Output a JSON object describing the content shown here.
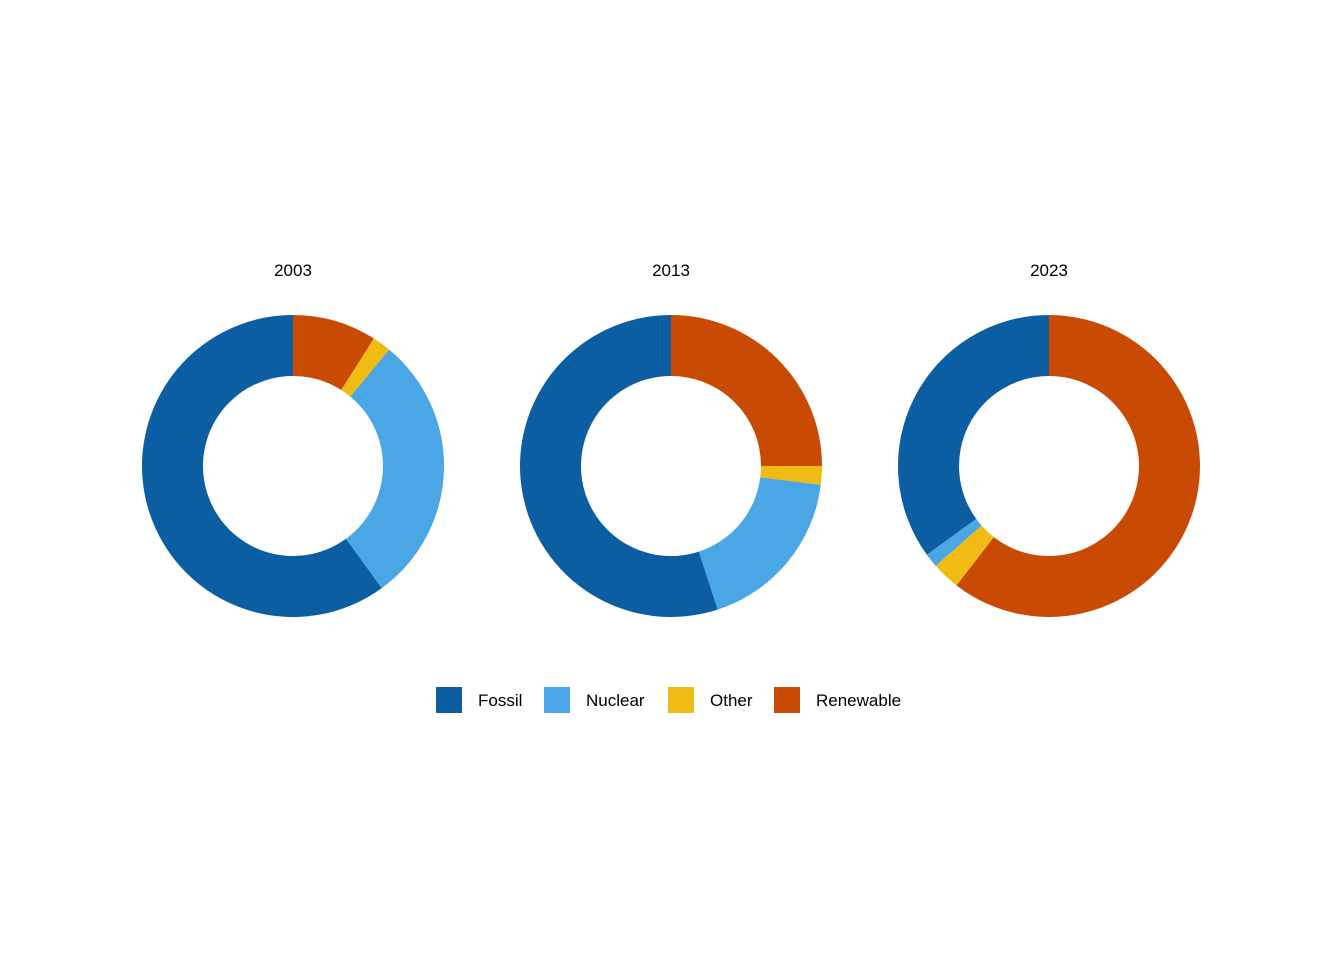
{
  "chart_data": {
    "type": "pie",
    "donut": true,
    "categories": [
      "Fossil",
      "Nuclear",
      "Other",
      "Renewable"
    ],
    "colors": {
      "Fossil": "#0b5ea1",
      "Nuclear": "#4aa6e4",
      "Other": "#f0bc13",
      "Renewable": "#c94b03"
    },
    "slice_order_clockwise_from_top": [
      "Renewable",
      "Other",
      "Nuclear",
      "Fossil"
    ],
    "charts": [
      {
        "title": "2003",
        "values": {
          "Fossil": 60,
          "Nuclear": 29,
          "Other": 2,
          "Renewable": 9
        }
      },
      {
        "title": "2013",
        "values": {
          "Fossil": 55,
          "Nuclear": 18,
          "Other": 2,
          "Renewable": 25
        }
      },
      {
        "title": "2023",
        "values": {
          "Fossil": 35,
          "Nuclear": 1.5,
          "Other": 3,
          "Renewable": 60.5
        }
      }
    ],
    "legend": {
      "position": "bottom",
      "entries": [
        "Fossil",
        "Nuclear",
        "Other",
        "Renewable"
      ]
    }
  }
}
